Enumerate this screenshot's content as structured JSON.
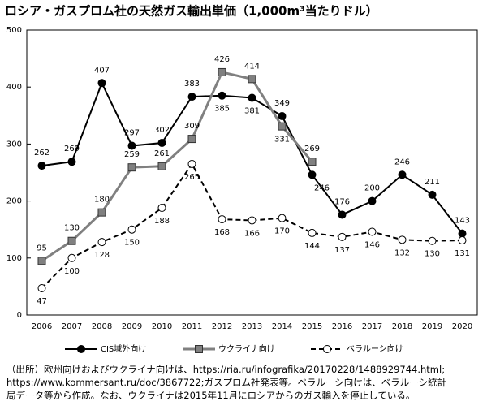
{
  "chart_data": {
    "type": "line",
    "title": "ロシア・ガスプロム社の天然ガス輸出単価（1,000m³当たりドル）",
    "categories": [
      "2006",
      "2007",
      "2008",
      "2009",
      "2010",
      "2011",
      "2012",
      "2013",
      "2014",
      "2015",
      "2016",
      "2017",
      "2018",
      "2019",
      "2020"
    ],
    "ylim": [
      0,
      500
    ],
    "yticks": [
      0,
      100,
      200,
      300,
      400,
      500
    ],
    "grid": false,
    "series": [
      {
        "name": "CIS域外向け",
        "color": "#000000",
        "marker": "circle",
        "dash": false,
        "values": [
          262,
          269,
          407,
          297,
          302,
          383,
          385,
          381,
          349,
          246,
          176,
          200,
          246,
          211,
          143
        ]
      },
      {
        "name": "ウクライナ向け",
        "color": "#808080",
        "marker": "square",
        "dash": false,
        "values": [
          95,
          130,
          180,
          259,
          261,
          309,
          426,
          414,
          331,
          269,
          null,
          null,
          null,
          null,
          null
        ]
      },
      {
        "name": "ベラルーシ向け",
        "color": "#000000",
        "marker": "open-circle",
        "dash": true,
        "values": [
          47,
          100,
          128,
          150,
          188,
          265,
          168,
          166,
          170,
          144,
          137,
          146,
          132,
          130,
          131
        ]
      }
    ],
    "note": [
      "（出所）欧州向けおよびウクライナ向けは、https://ria.ru/infografika/20170228/1488929744.html;",
      "https://www.kommersant.ru/doc/3867722;ガスプロム社発表等。ベラルーシ向けは、ベラルーシ統計",
      "局データ等から作成。なお、ウクライナは2015年11月にロシアからのガス輸入を停止している。"
    ]
  }
}
